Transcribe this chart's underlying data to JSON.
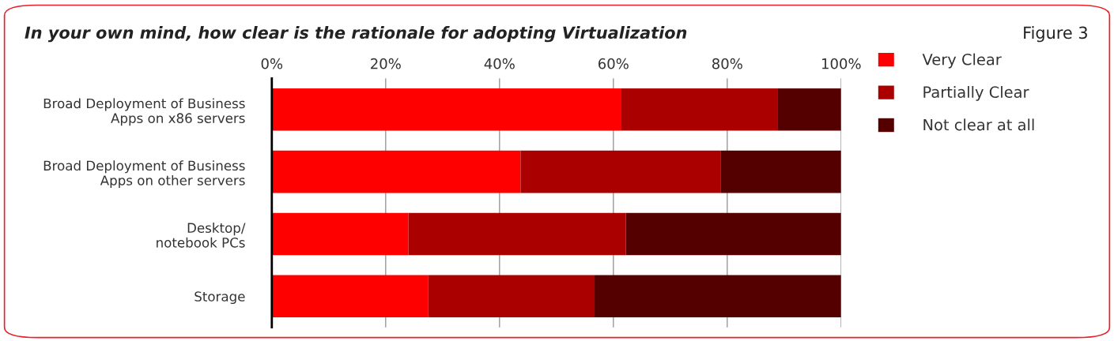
{
  "chart_data": {
    "type": "bar",
    "orientation": "horizontal",
    "stacked": true,
    "title": "In your own mind, how clear is the rationale for adopting Virtualization",
    "annotations": [
      "Figure 3"
    ],
    "categories": [
      "Broad Deployment of Business\nApps on x86 servers",
      "Broad Deployment of Business\nApps on other servers",
      "Desktop/\nnotebook PCs",
      "Storage"
    ],
    "series": [
      {
        "name": "Very Clear",
        "color": "#ff0000",
        "values": [
          61.3,
          43.7,
          24.0,
          27.5
        ]
      },
      {
        "name": "Partially Clear",
        "color": "#aa0000",
        "values": [
          27.5,
          35.2,
          38.2,
          29.2
        ]
      },
      {
        "name": "Not clear at all",
        "color": "#550000",
        "values": [
          11.2,
          21.1,
          37.8,
          43.3
        ]
      }
    ],
    "xlim": [
      0,
      100
    ],
    "xticks": [
      {
        "value": 0,
        "label": "0%"
      },
      {
        "value": 20,
        "label": "20%"
      },
      {
        "value": 40,
        "label": "40%"
      },
      {
        "value": 60,
        "label": "60%"
      },
      {
        "value": 80,
        "label": "80%"
      },
      {
        "value": 100,
        "label": "100%"
      }
    ],
    "grid": "x",
    "legend": "right"
  }
}
